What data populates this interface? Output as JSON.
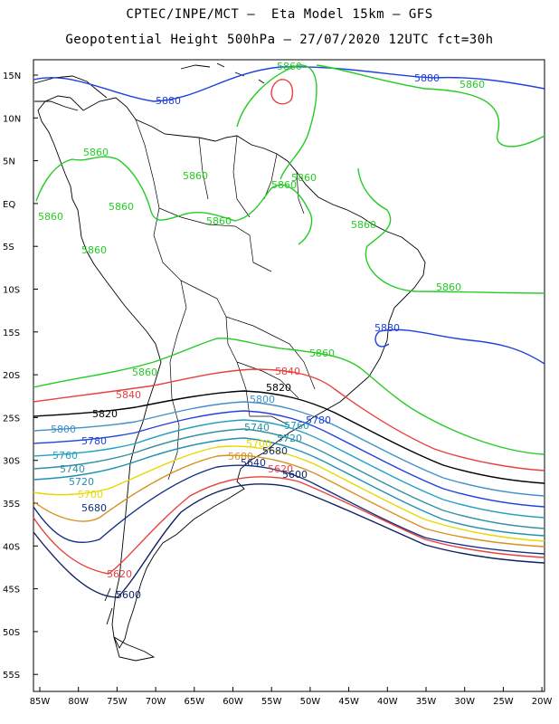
{
  "header": {
    "title_line1": "CPTEC/INPE/MCT –  Eta Model 15km – GFS",
    "title_line2": "Geopotential Height 500hPa – 27/07/2020 12UTC fct=30h"
  },
  "axes": {
    "lat_labels": [
      "15N",
      "10N",
      "5N",
      "EQ",
      "5S",
      "10S",
      "15S",
      "20S",
      "25S",
      "30S",
      "35S",
      "40S",
      "45S",
      "50S",
      "55S"
    ],
    "lon_labels": [
      "85W",
      "80W",
      "75W",
      "70W",
      "65W",
      "60W",
      "55W",
      "50W",
      "45W",
      "40W",
      "35W",
      "30W",
      "25W",
      "20W"
    ]
  },
  "colors": {
    "c5880": "#2040e0",
    "c5860": "#22cc22",
    "c5840": "#e84040",
    "c5820": "#000000",
    "c5800": "#4090c8",
    "c5780": "#2040e0",
    "c5760": "#20a0c0",
    "c5740": "#3090a0",
    "c5720": "#2090b0",
    "c5700": "#e8d800",
    "c5680": "#d89020",
    "c5640": "#103080",
    "c5620": "#e84040",
    "c5600": "#102060",
    "coast": "#000000"
  },
  "contour_labels": {
    "l5880_a": "5880",
    "l5880_b": "5880",
    "l5880_c": "5880",
    "l5860_a": "5860",
    "l5860_b": "5860",
    "l5860_c": "5860",
    "l5860_d": "5860",
    "l5860_e": "5860",
    "l5860_f": "5860",
    "l5860_g": "5860",
    "l5860_h": "5860",
    "l5860_i": "5860",
    "l5860_j": "5860",
    "l5860_k": "5860",
    "l5860_l": "5860",
    "l5860_m": "5860",
    "l5860_n": "5860",
    "l5840_a": "5840",
    "l5840_b": "5840",
    "l5820_a": "5820",
    "l5820_b": "5820",
    "l5800_a": "5800",
    "l5800_b": "5800",
    "l5780_a": "5780",
    "l5780_b": "5780",
    "l5760_a": "5760",
    "l5760_b": "5760",
    "l5740_a": "5740",
    "l5740_b": "5740",
    "l5720_a": "5720",
    "l5720_b": "5720",
    "l5700_a": "5700",
    "l5700_b": "5700",
    "l5680_a": "5680",
    "l5680_b": "5680",
    "l5640": "5640",
    "l5620_a": "5620",
    "l5620_b": "5620",
    "l5600_a": "5600",
    "l5600_b": "5600"
  }
}
